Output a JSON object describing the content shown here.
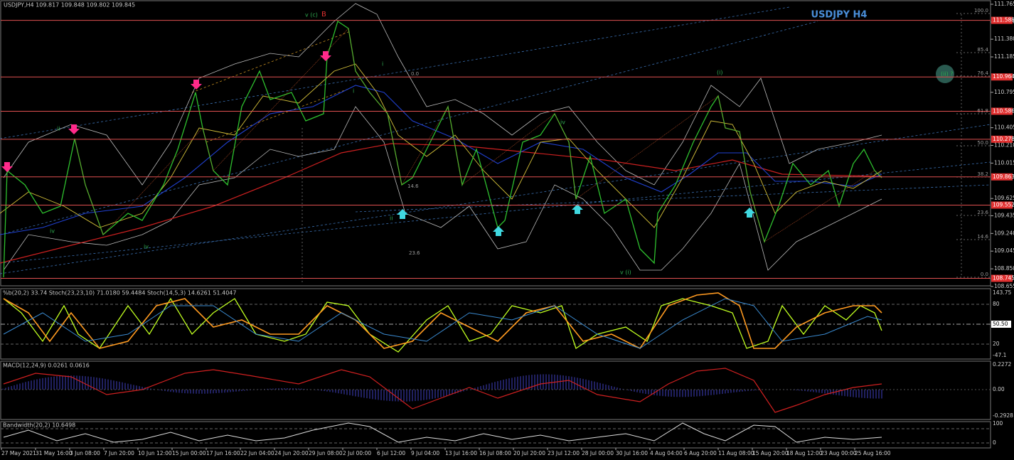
{
  "header": {
    "info": "USDJPY,H4  109.817 109.848 109.802 109.845",
    "symbol": "USDJPY H4"
  },
  "price_axis": {
    "ticks": [
      {
        "value": 111.765,
        "label": "111.765"
      },
      {
        "value": 111.57,
        "label": "111.570"
      },
      {
        "value": 111.38,
        "label": "111.380"
      },
      {
        "value": 111.185,
        "label": "111.185"
      },
      {
        "value": 110.795,
        "label": "110.795"
      },
      {
        "value": 110.405,
        "label": "110.405"
      },
      {
        "value": 110.21,
        "label": "110.210"
      },
      {
        "value": 110.015,
        "label": "110.015"
      },
      {
        "value": 109.625,
        "label": "109.625"
      },
      {
        "value": 109.435,
        "label": "109.435"
      },
      {
        "value": 109.24,
        "label": "109.240"
      },
      {
        "value": 109.045,
        "label": "109.045"
      },
      {
        "value": 108.85,
        "label": "108.850"
      },
      {
        "value": 108.655,
        "label": "108.655"
      }
    ]
  },
  "levels": [
    {
      "value": 111.588,
      "label": "111.588"
    },
    {
      "value": 110.964,
      "label": "110.964"
    },
    {
      "value": 110.586,
      "label": "110.586"
    },
    {
      "value": 110.278,
      "label": "110.278"
    },
    {
      "value": 109.863,
      "label": "109.863"
    },
    {
      "value": 109.552,
      "label": "109.552"
    },
    {
      "value": 108.745,
      "label": "108.745"
    }
  ],
  "fib_labels": [
    "100.0",
    "85.4",
    "76.4",
    "61.8",
    "50.0",
    "38.2",
    "23.6",
    "14.6",
    "0.0"
  ],
  "wave_labels": [
    "v (c)",
    "B",
    "(i)",
    "(ii) ?",
    "iv",
    "ii",
    "ii",
    "iv",
    "iv",
    "v (i)",
    "i",
    "i",
    "0.0",
    "14.6",
    "23.6"
  ],
  "stoch_panel": {
    "header": "%b(20,2) 33.74  Stoch(23,23,10) 71.0180 59.4484  Stoch(14,5,3) 14.6261 51.4047",
    "axis": [
      "143.75",
      "80",
      "50.50",
      "20",
      "-47.1"
    ]
  },
  "macd_panel": {
    "header": "MACD(12,24,9) 0.0261 0.0616",
    "axis": [
      "0.2272",
      "0.00",
      "-0.2928"
    ]
  },
  "bandwidth_panel": {
    "header": "Bandwidth(20,2) 10.6498",
    "axis": [
      "100",
      "0"
    ]
  },
  "dates": [
    "27 May 2021",
    "31 May 16:00",
    "3 Jun 08:00",
    "7 Jun 20:00",
    "10 Jun 12:00",
    "15 Jun 00:00",
    "17 Jun 16:00",
    "22 Jun 04:00",
    "24 Jun 20:00",
    "29 Jun 08:00",
    "2 Jul 00:00",
    "6 Jul 12:00",
    "9 Jul 04:00",
    "13 Jul 16:00",
    "16 Jul 08:00",
    "20 Jul 20:00",
    "23 Jul 12:00",
    "28 Jul 00:00",
    "30 Jul 16:00",
    "4 Aug 04:00",
    "6 Aug 20:00",
    "11 Aug 08:00",
    "15 Aug 20:00",
    "18 Aug 12:00",
    "23 Aug 00:00",
    "25 Aug 16:00"
  ]
}
